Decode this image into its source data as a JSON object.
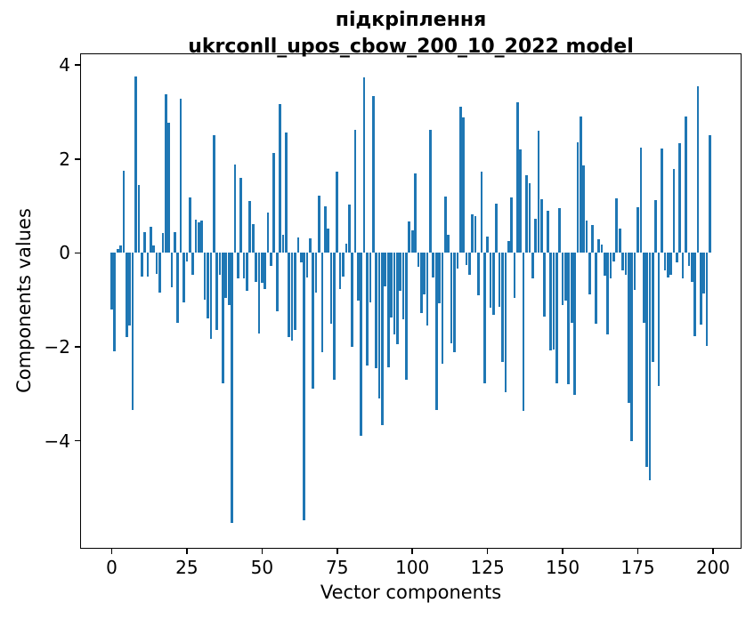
{
  "chart_data": {
    "type": "bar",
    "title": "підкріплення",
    "subtitle": "ukrconll_upos_cbow_200_10_2022 model",
    "xlabel": "Vector components",
    "ylabel": "Components values",
    "x_ticks": [
      0,
      25,
      50,
      75,
      100,
      125,
      150,
      175,
      200
    ],
    "y_ticks": [
      4,
      2,
      0,
      -2,
      -4
    ],
    "xlim": [
      -10.5,
      209.5
    ],
    "ylim": [
      -6.3,
      4.25
    ],
    "grid": false,
    "legend": false,
    "bar_color": "#1f77b4",
    "n_components": 200,
    "values": [
      -1.2,
      -2.1,
      0.08,
      0.16,
      1.75,
      -1.8,
      -1.55,
      -3.35,
      3.75,
      1.45,
      -0.5,
      0.45,
      -0.5,
      0.55,
      0.16,
      -0.45,
      -0.85,
      0.42,
      3.38,
      2.78,
      -0.73,
      0.44,
      -1.49,
      3.28,
      -1.05,
      -0.18,
      1.18,
      -0.46,
      0.7,
      0.65,
      0.69,
      -0.99,
      -1.39,
      -1.83,
      2.51,
      -1.64,
      -0.46,
      -2.77,
      -0.96,
      -1.11,
      -5.75,
      1.89,
      -0.55,
      1.59,
      -0.55,
      -0.8,
      1.11,
      0.61,
      -0.61,
      -1.71,
      -0.64,
      -0.77,
      0.86,
      -0.27,
      2.12,
      -1.24,
      3.17,
      0.39,
      2.56,
      -1.8,
      -1.86,
      -1.64,
      0.33,
      -0.2,
      -5.7,
      -0.52,
      0.31,
      -2.89,
      -0.85,
      1.22,
      -2.11,
      1.0,
      0.51,
      -1.5,
      -2.7,
      1.73,
      -0.77,
      -0.5,
      0.2,
      1.03,
      -2.0,
      2.62,
      -1.02,
      -3.9,
      3.73,
      -2.39,
      -1.06,
      3.34,
      -2.46,
      -3.1,
      -3.67,
      -0.72,
      -2.43,
      -1.38,
      -1.73,
      -1.95,
      -0.81,
      -1.41,
      -2.7,
      0.67,
      0.48,
      1.69,
      -0.3,
      -1.29,
      -0.88,
      -1.54,
      2.63,
      -0.53,
      -3.35,
      -1.08,
      -2.36,
      1.2,
      0.39,
      -1.93,
      -2.11,
      -0.33,
      3.11,
      2.88,
      -0.25,
      -0.46,
      0.83,
      0.78,
      -0.91,
      1.73,
      -2.77,
      0.34,
      -1.16,
      -1.31,
      1.04,
      -1.14,
      -2.33,
      -2.96,
      0.26,
      1.19,
      -0.96,
      3.2,
      2.2,
      -3.36,
      1.65,
      1.48,
      -0.55,
      0.73,
      2.61,
      1.15,
      -1.36,
      0.89,
      -2.08,
      -2.05,
      -2.77,
      0.96,
      -1.11,
      -1.02,
      -2.8,
      -1.49,
      -3.02,
      2.36,
      2.9,
      1.86,
      0.69,
      -0.89,
      0.59,
      -1.5,
      0.29,
      0.17,
      -0.48,
      -1.74,
      -0.55,
      -0.18,
      1.17,
      0.51,
      -0.38,
      -0.46,
      -3.2,
      -4.0,
      -0.78,
      0.97,
      2.25,
      -1.48,
      -4.55,
      -4.85,
      -2.33,
      1.13,
      -2.84,
      2.23,
      -0.37,
      -0.53,
      -0.47,
      1.78,
      -0.21,
      2.33,
      -0.55,
      2.9,
      -0.27,
      -0.61,
      -1.77,
      3.55,
      -1.52,
      -0.86,
      -1.99,
      2.5
    ]
  }
}
